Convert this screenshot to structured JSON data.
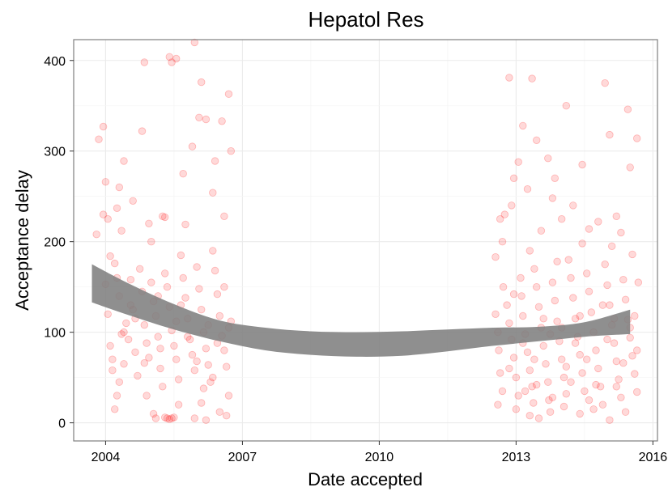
{
  "chart_data": {
    "type": "scatter",
    "title": "Hepatol Res",
    "xlabel": "Date accepted",
    "ylabel": "Acceptance delay",
    "x_ticks": [
      2004,
      2007,
      2010,
      2013,
      2016
    ],
    "y_ticks": [
      0,
      100,
      200,
      300,
      400
    ],
    "xlim": [
      2003.3,
      2016.1
    ],
    "ylim": [
      -20,
      423
    ],
    "grid": true,
    "legend": "none",
    "point_color": "#ff0000",
    "point_opacity": 0.15,
    "band_color": "#808080",
    "smooth_band": {
      "x": [
        2003.7,
        2004.5,
        2005.5,
        2006.5,
        2007.5,
        2008.5,
        2009.5,
        2010.5,
        2011.5,
        2012.5,
        2013.5,
        2014.5,
        2015.5
      ],
      "lower": [
        133,
        119,
        103,
        90,
        80,
        75,
        73,
        74,
        79,
        85,
        90,
        95,
        98
      ],
      "upper": [
        175,
        154,
        131,
        113,
        105,
        101,
        100,
        101,
        103,
        105,
        106,
        111,
        125
      ]
    },
    "points": [
      [
        2003.8,
        208
      ],
      [
        2003.85,
        313
      ],
      [
        2003.95,
        327
      ],
      [
        2004.0,
        266
      ],
      [
        2003.95,
        230
      ],
      [
        2004.05,
        225
      ],
      [
        2004.1,
        184
      ],
      [
        2004.25,
        237
      ],
      [
        2004.3,
        260
      ],
      [
        2004.35,
        212
      ],
      [
        2004.4,
        289
      ],
      [
        2004.6,
        245
      ],
      [
        2004.8,
        322
      ],
      [
        2004.85,
        398
      ],
      [
        2005.0,
        200
      ],
      [
        2005.25,
        228
      ],
      [
        2005.4,
        404
      ],
      [
        2005.45,
        398
      ],
      [
        2005.55,
        402
      ],
      [
        2005.7,
        275
      ],
      [
        2005.9,
        305
      ],
      [
        2005.95,
        420
      ],
      [
        2006.1,
        376
      ],
      [
        2006.05,
        337
      ],
      [
        2006.2,
        335
      ],
      [
        2006.4,
        289
      ],
      [
        2006.55,
        333
      ],
      [
        2006.7,
        363
      ],
      [
        2006.75,
        300
      ],
      [
        2006.35,
        254
      ],
      [
        2006.6,
        228
      ],
      [
        2005.75,
        219
      ],
      [
        2005.3,
        227
      ],
      [
        2004.95,
        220
      ],
      [
        2004.0,
        153
      ],
      [
        2004.05,
        120
      ],
      [
        2004.1,
        85
      ],
      [
        2004.15,
        58
      ],
      [
        2004.2,
        176
      ],
      [
        2004.25,
        160
      ],
      [
        2004.3,
        140
      ],
      [
        2004.35,
        98
      ],
      [
        2004.4,
        65
      ],
      [
        2004.45,
        110
      ],
      [
        2004.5,
        92
      ],
      [
        2004.55,
        130
      ],
      [
        2004.6,
        125
      ],
      [
        2004.65,
        78
      ],
      [
        2004.7,
        52
      ],
      [
        2004.75,
        170
      ],
      [
        2004.8,
        145
      ],
      [
        2004.85,
        108
      ],
      [
        2004.9,
        88
      ],
      [
        2004.95,
        72
      ],
      [
        2005.0,
        155
      ],
      [
        2005.05,
        134
      ],
      [
        2005.1,
        118
      ],
      [
        2005.15,
        95
      ],
      [
        2005.2,
        60
      ],
      [
        2005.25,
        40
      ],
      [
        2005.3,
        165
      ],
      [
        2005.35,
        150
      ],
      [
        2005.4,
        128
      ],
      [
        2005.45,
        102
      ],
      [
        2005.5,
        85
      ],
      [
        2005.55,
        70
      ],
      [
        2005.6,
        48
      ],
      [
        2005.65,
        185
      ],
      [
        2005.7,
        160
      ],
      [
        2005.75,
        138
      ],
      [
        2005.8,
        115
      ],
      [
        2005.85,
        92
      ],
      [
        2005.9,
        75
      ],
      [
        2005.95,
        58
      ],
      [
        2006.0,
        172
      ],
      [
        2006.05,
        148
      ],
      [
        2006.1,
        125
      ],
      [
        2006.15,
        100
      ],
      [
        2006.2,
        82
      ],
      [
        2006.25,
        64
      ],
      [
        2006.3,
        45
      ],
      [
        2006.35,
        190
      ],
      [
        2006.4,
        168
      ],
      [
        2006.45,
        142
      ],
      [
        2006.5,
        118
      ],
      [
        2006.55,
        96
      ],
      [
        2006.6,
        80
      ],
      [
        2006.65,
        62
      ],
      [
        2006.7,
        30
      ],
      [
        2006.75,
        112
      ],
      [
        2004.2,
        15
      ],
      [
        2004.25,
        30
      ],
      [
        2005.05,
        10
      ],
      [
        2005.1,
        5
      ],
      [
        2005.3,
        6
      ],
      [
        2005.35,
        5
      ],
      [
        2005.4,
        4
      ],
      [
        2005.45,
        5
      ],
      [
        2005.5,
        6
      ],
      [
        2005.6,
        20
      ],
      [
        2005.95,
        5
      ],
      [
        2006.2,
        3
      ],
      [
        2006.5,
        12
      ],
      [
        2006.65,
        8
      ],
      [
        2004.9,
        30
      ],
      [
        2006.1,
        22
      ],
      [
        2004.4,
        100
      ],
      [
        2004.65,
        115
      ],
      [
        2005.15,
        140
      ],
      [
        2005.55,
        112
      ],
      [
        2005.8,
        95
      ],
      [
        2006.25,
        108
      ],
      [
        2006.45,
        88
      ],
      [
        2006.7,
        105
      ],
      [
        2004.15,
        70
      ],
      [
        2004.3,
        45
      ],
      [
        2005.2,
        82
      ],
      [
        2006.0,
        68
      ],
      [
        2006.35,
        50
      ],
      [
        2006.6,
        150
      ],
      [
        2005.65,
        130
      ],
      [
        2004.55,
        158
      ],
      [
        2004.85,
        66
      ],
      [
        2006.15,
        38
      ],
      [
        2012.55,
        183
      ],
      [
        2012.65,
        225
      ],
      [
        2012.75,
        230
      ],
      [
        2012.85,
        381
      ],
      [
        2012.9,
        240
      ],
      [
        2012.95,
        270
      ],
      [
        2013.05,
        288
      ],
      [
        2013.15,
        328
      ],
      [
        2013.25,
        258
      ],
      [
        2013.35,
        380
      ],
      [
        2013.45,
        312
      ],
      [
        2013.55,
        212
      ],
      [
        2013.7,
        292
      ],
      [
        2013.8,
        248
      ],
      [
        2013.85,
        270
      ],
      [
        2014.0,
        225
      ],
      [
        2014.1,
        350
      ],
      [
        2014.25,
        240
      ],
      [
        2014.45,
        285
      ],
      [
        2014.6,
        214
      ],
      [
        2014.8,
        222
      ],
      [
        2014.95,
        375
      ],
      [
        2015.05,
        318
      ],
      [
        2015.2,
        228
      ],
      [
        2015.3,
        210
      ],
      [
        2015.45,
        346
      ],
      [
        2015.5,
        282
      ],
      [
        2015.65,
        314
      ],
      [
        2012.55,
        120
      ],
      [
        2012.6,
        100
      ],
      [
        2012.62,
        80
      ],
      [
        2012.65,
        55
      ],
      [
        2012.7,
        35
      ],
      [
        2012.72,
        150
      ],
      [
        2012.8,
        130
      ],
      [
        2012.85,
        110
      ],
      [
        2012.9,
        92
      ],
      [
        2012.95,
        72
      ],
      [
        2013.0,
        50
      ],
      [
        2013.05,
        30
      ],
      [
        2013.1,
        160
      ],
      [
        2013.12,
        140
      ],
      [
        2013.15,
        118
      ],
      [
        2013.2,
        98
      ],
      [
        2013.25,
        78
      ],
      [
        2013.3,
        58
      ],
      [
        2013.35,
        40
      ],
      [
        2013.38,
        22
      ],
      [
        2013.4,
        170
      ],
      [
        2013.45,
        150
      ],
      [
        2013.5,
        128
      ],
      [
        2013.55,
        105
      ],
      [
        2013.6,
        85
      ],
      [
        2013.65,
        65
      ],
      [
        2013.7,
        45
      ],
      [
        2013.72,
        25
      ],
      [
        2013.8,
        155
      ],
      [
        2013.85,
        135
      ],
      [
        2013.9,
        112
      ],
      [
        2013.95,
        90
      ],
      [
        2014.0,
        70
      ],
      [
        2014.05,
        50
      ],
      [
        2014.1,
        32
      ],
      [
        2014.15,
        180
      ],
      [
        2014.2,
        160
      ],
      [
        2014.25,
        138
      ],
      [
        2014.3,
        115
      ],
      [
        2014.35,
        95
      ],
      [
        2014.4,
        75
      ],
      [
        2014.45,
        55
      ],
      [
        2014.5,
        35
      ],
      [
        2014.55,
        165
      ],
      [
        2014.6,
        145
      ],
      [
        2014.65,
        122
      ],
      [
        2014.7,
        100
      ],
      [
        2014.75,
        80
      ],
      [
        2014.8,
        60
      ],
      [
        2014.85,
        40
      ],
      [
        2014.9,
        20
      ],
      [
        2014.95,
        175
      ],
      [
        2015.0,
        152
      ],
      [
        2015.05,
        130
      ],
      [
        2015.1,
        108
      ],
      [
        2015.15,
        88
      ],
      [
        2015.2,
        68
      ],
      [
        2015.25,
        48
      ],
      [
        2015.3,
        28
      ],
      [
        2015.35,
        158
      ],
      [
        2015.4,
        136
      ],
      [
        2015.45,
        114
      ],
      [
        2015.5,
        94
      ],
      [
        2015.55,
        74
      ],
      [
        2015.6,
        54
      ],
      [
        2015.65,
        34
      ],
      [
        2015.68,
        155
      ],
      [
        2013.0,
        15
      ],
      [
        2013.3,
        8
      ],
      [
        2013.5,
        5
      ],
      [
        2013.75,
        12
      ],
      [
        2014.05,
        18
      ],
      [
        2014.4,
        10
      ],
      [
        2014.7,
        15
      ],
      [
        2015.05,
        3
      ],
      [
        2015.4,
        12
      ],
      [
        2012.7,
        200
      ],
      [
        2013.3,
        190
      ],
      [
        2013.9,
        178
      ],
      [
        2014.45,
        198
      ],
      [
        2015.1,
        195
      ],
      [
        2015.55,
        186
      ],
      [
        2012.85,
        60
      ],
      [
        2013.15,
        88
      ],
      [
        2013.45,
        42
      ],
      [
        2013.75,
        98
      ],
      [
        2014.1,
        62
      ],
      [
        2014.4,
        118
      ],
      [
        2014.75,
        42
      ],
      [
        2015.0,
        92
      ],
      [
        2015.35,
        66
      ],
      [
        2015.6,
        118
      ],
      [
        2012.6,
        20
      ],
      [
        2013.2,
        35
      ],
      [
        2013.8,
        28
      ],
      [
        2014.2,
        45
      ],
      [
        2014.6,
        25
      ],
      [
        2015.2,
        40
      ],
      [
        2015.65,
        80
      ],
      [
        2012.95,
        142
      ],
      [
        2013.6,
        115
      ],
      [
        2014.3,
        88
      ],
      [
        2014.9,
        130
      ],
      [
        2015.5,
        105
      ],
      [
        2013.4,
        70
      ],
      [
        2014.0,
        105
      ],
      [
        2014.55,
        70
      ],
      [
        2015.15,
        115
      ]
    ]
  }
}
